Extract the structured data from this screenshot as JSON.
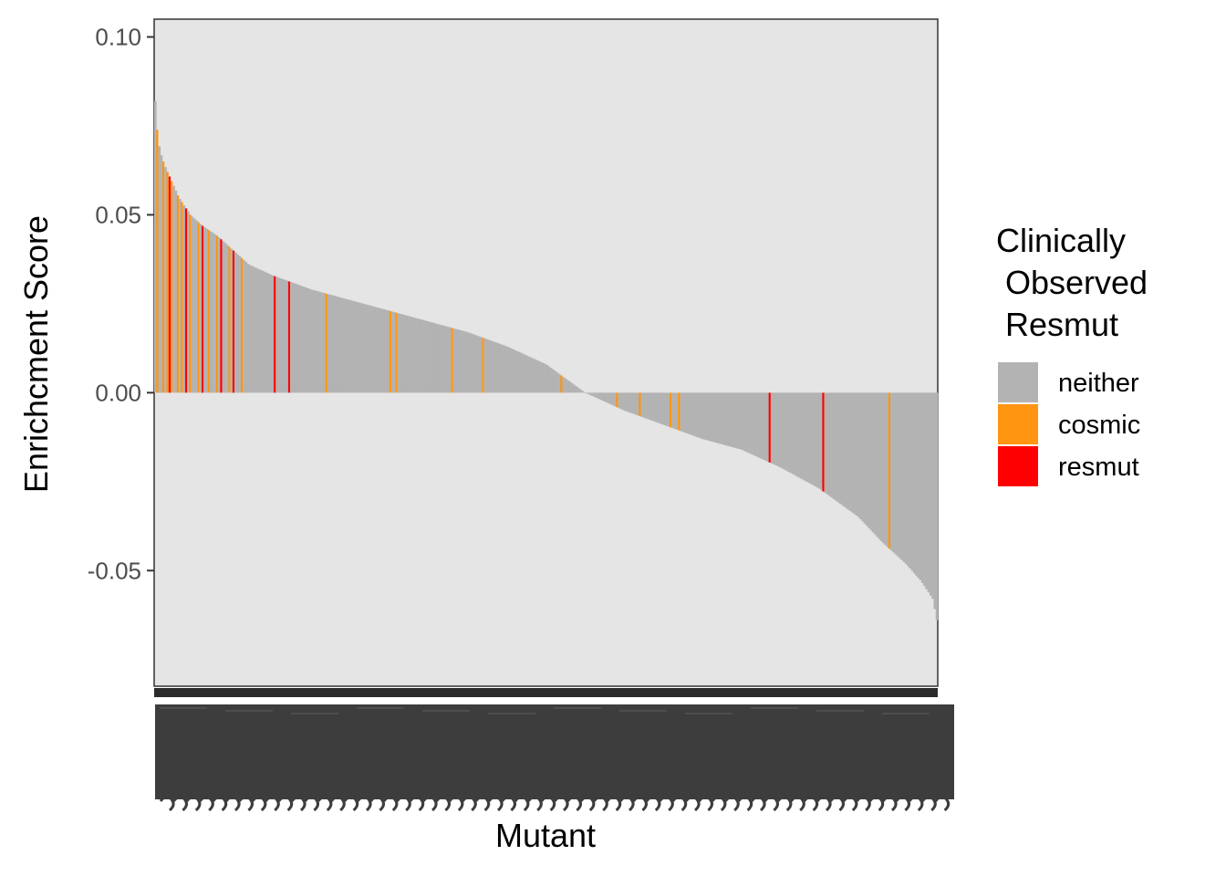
{
  "chart_data": {
    "type": "bar",
    "title": "",
    "xlabel": "Mutant",
    "ylabel": "Enrichcment Score",
    "ylim": [
      -0.08,
      0.105
    ],
    "y_ticks": [
      0.1,
      0.05,
      0.0,
      -0.05
    ],
    "y_tick_labels": [
      "0.10",
      "0.05",
      "0.00",
      "-0.05"
    ],
    "x_tick_labels_legible": false,
    "panel_background": "#e5e5e5",
    "bar_order": "descending",
    "legend": {
      "title_lines": [
        "Clinically",
        " Observed",
        " Resmut"
      ],
      "placement": "right",
      "entries": [
        {
          "label": "neither",
          "color": "#b3b3b3"
        },
        {
          "label": "cosmic",
          "color": "#ff9510"
        },
        {
          "label": "resmut",
          "color": "#ff0000"
        }
      ]
    },
    "score_profile": [
      [
        0,
        0.082
      ],
      [
        0.002,
        0.075
      ],
      [
        0.006,
        0.068
      ],
      [
        0.012,
        0.064
      ],
      [
        0.02,
        0.06
      ],
      [
        0.03,
        0.055
      ],
      [
        0.045,
        0.05
      ],
      [
        0.06,
        0.047
      ],
      [
        0.08,
        0.044
      ],
      [
        0.1,
        0.04
      ],
      [
        0.12,
        0.036
      ],
      [
        0.15,
        0.033
      ],
      [
        0.2,
        0.029
      ],
      [
        0.25,
        0.026
      ],
      [
        0.3,
        0.023
      ],
      [
        0.35,
        0.02
      ],
      [
        0.4,
        0.017
      ],
      [
        0.45,
        0.013
      ],
      [
        0.5,
        0.008
      ],
      [
        0.55,
        0.0
      ],
      [
        0.6,
        -0.005
      ],
      [
        0.65,
        -0.009
      ],
      [
        0.7,
        -0.013
      ],
      [
        0.75,
        -0.016
      ],
      [
        0.8,
        -0.021
      ],
      [
        0.85,
        -0.027
      ],
      [
        0.9,
        -0.035
      ],
      [
        0.93,
        -0.042
      ],
      [
        0.96,
        -0.048
      ],
      [
        0.98,
        -0.053
      ],
      [
        0.995,
        -0.058
      ],
      [
        1.0,
        -0.064
      ]
    ],
    "highlight_bars": {
      "cosmic_positions": [
        0.003,
        0.01,
        0.016,
        0.022,
        0.028,
        0.035,
        0.045,
        0.055,
        0.068,
        0.08,
        0.096,
        0.11,
        0.153,
        0.22,
        0.3,
        0.31,
        0.38,
        0.42,
        0.52,
        0.59,
        0.62,
        0.66,
        0.67,
        0.94
      ],
      "resmut_positions": [
        0.019,
        0.04,
        0.062,
        0.085,
        0.1,
        0.153,
        0.172,
        0.785,
        0.854
      ]
    }
  }
}
